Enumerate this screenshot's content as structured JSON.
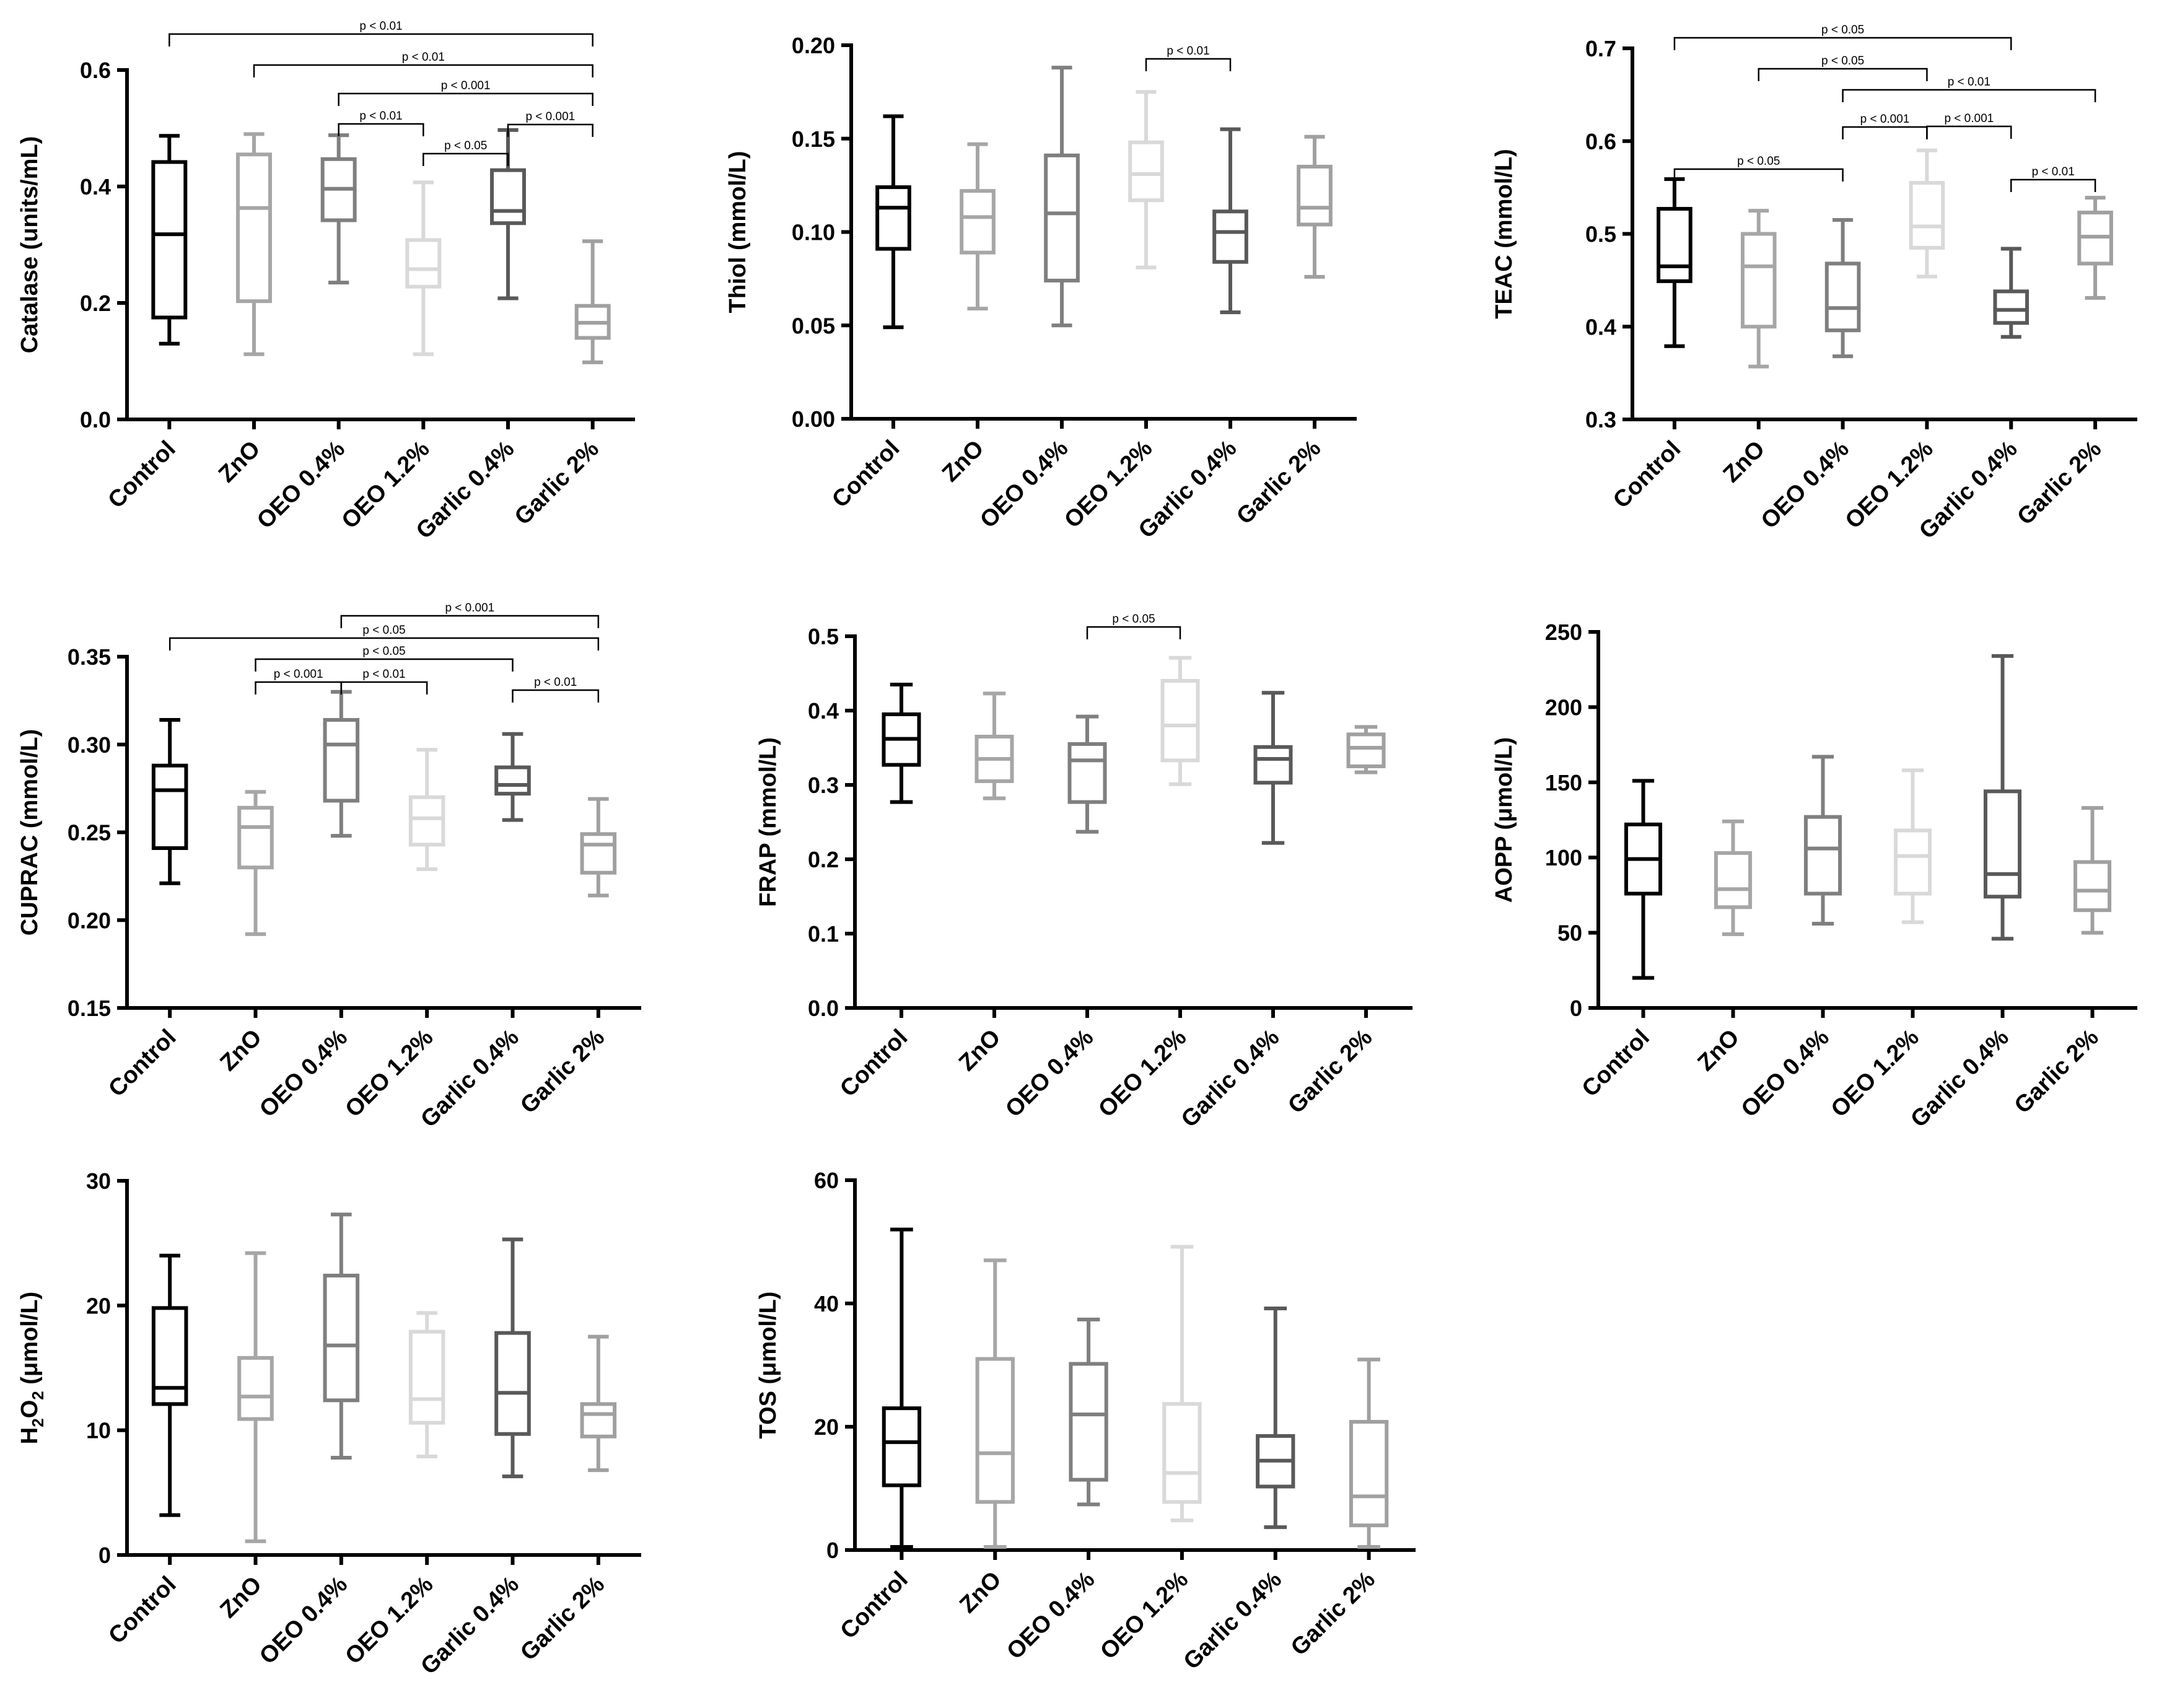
{
  "figure": {
    "group_colors": [
      "#000000",
      "#a6a6a6",
      "#7f7f7f",
      "#d9d9d9",
      "#595959",
      "#a0a0a0"
    ]
  },
  "chart_data": [
    {
      "type": "boxplot",
      "ylabel": "Catalase (units/mL)",
      "ylim": [
        0,
        0.6
      ],
      "yticks": [
        "0.0",
        "0.2",
        "0.4",
        "0.6"
      ],
      "categories": [
        "Control",
        "ZnO",
        "OEO 0.4%",
        "OEO 1.2%",
        "Garlic 0.4%",
        "Garlic 2%"
      ],
      "boxes": [
        {
          "min": 0.13,
          "q1": 0.175,
          "median": 0.318,
          "q3": 0.442,
          "max": 0.487
        },
        {
          "min": 0.112,
          "q1": 0.203,
          "median": 0.363,
          "q3": 0.455,
          "max": 0.49
        },
        {
          "min": 0.235,
          "q1": 0.342,
          "median": 0.396,
          "q3": 0.447,
          "max": 0.488
        },
        {
          "min": 0.112,
          "q1": 0.228,
          "median": 0.258,
          "q3": 0.308,
          "max": 0.407
        },
        {
          "min": 0.208,
          "q1": 0.337,
          "median": 0.358,
          "q3": 0.428,
          "max": 0.497
        },
        {
          "min": 0.098,
          "q1": 0.14,
          "median": 0.166,
          "q3": 0.195,
          "max": 0.306
        }
      ],
      "annotations": [
        {
          "from": 0,
          "to": 5,
          "text": "p < 0.01"
        },
        {
          "from": 1,
          "to": 5,
          "text": "p < 0.01"
        },
        {
          "from": 2,
          "to": 5,
          "text": "p < 0.001"
        },
        {
          "from": 2,
          "to": 3,
          "text": "p < 0.01"
        },
        {
          "from": 4,
          "to": 5,
          "text": "p < 0.001"
        },
        {
          "from": 3,
          "to": 4,
          "text": "p < 0.05"
        }
      ]
    },
    {
      "type": "boxplot",
      "ylabel": "Thiol (mmol/L)",
      "ylim": [
        0,
        0.2
      ],
      "yticks": [
        "0.00",
        "0.05",
        "0.10",
        "0.15",
        "0.20"
      ],
      "categories": [
        "Control",
        "ZnO",
        "OEO 0.4%",
        "OEO 1.2%",
        "Garlic 0.4%",
        "Garlic 2%"
      ],
      "boxes": [
        {
          "min": 0.049,
          "q1": 0.091,
          "median": 0.113,
          "q3": 0.124,
          "max": 0.162
        },
        {
          "min": 0.059,
          "q1": 0.089,
          "median": 0.108,
          "q3": 0.122,
          "max": 0.147
        },
        {
          "min": 0.05,
          "q1": 0.074,
          "median": 0.11,
          "q3": 0.141,
          "max": 0.188
        },
        {
          "min": 0.081,
          "q1": 0.117,
          "median": 0.131,
          "q3": 0.148,
          "max": 0.175
        },
        {
          "min": 0.057,
          "q1": 0.084,
          "median": 0.1,
          "q3": 0.111,
          "max": 0.155
        },
        {
          "min": 0.076,
          "q1": 0.104,
          "median": 0.113,
          "q3": 0.135,
          "max": 0.151
        }
      ],
      "annotations": [
        {
          "from": 3,
          "to": 4,
          "text": "p < 0.01"
        }
      ]
    },
    {
      "type": "boxplot",
      "ylabel": "TEAC (mmol/L)",
      "ylim": [
        0.3,
        0.7
      ],
      "yticks": [
        "0.3",
        "0.4",
        "0.5",
        "0.6",
        "0.7"
      ],
      "categories": [
        "Control",
        "ZnO",
        "OEO 0.4%",
        "OEO 1.2%",
        "Garlic 0.4%",
        "Garlic 2%"
      ],
      "boxes": [
        {
          "min": 0.379,
          "q1": 0.449,
          "median": 0.465,
          "q3": 0.527,
          "max": 0.559
        },
        {
          "min": 0.357,
          "q1": 0.4,
          "median": 0.465,
          "q3": 0.5,
          "max": 0.525
        },
        {
          "min": 0.368,
          "q1": 0.396,
          "median": 0.42,
          "q3": 0.468,
          "max": 0.515
        },
        {
          "min": 0.454,
          "q1": 0.485,
          "median": 0.508,
          "q3": 0.555,
          "max": 0.59
        },
        {
          "min": 0.389,
          "q1": 0.404,
          "median": 0.418,
          "q3": 0.438,
          "max": 0.484
        },
        {
          "min": 0.431,
          "q1": 0.468,
          "median": 0.497,
          "q3": 0.523,
          "max": 0.539
        }
      ],
      "annotations": [
        {
          "from": 0,
          "to": 4,
          "text": "p < 0.05"
        },
        {
          "from": 1,
          "to": 3,
          "text": "p < 0.05"
        },
        {
          "from": 2,
          "to": 5,
          "text": "p < 0.01"
        },
        {
          "from": 2,
          "to": 3,
          "text": "p < 0.001"
        },
        {
          "from": 3,
          "to": 4,
          "text": "p < 0.001"
        },
        {
          "from": 0,
          "to": 2,
          "text": "p < 0.05"
        },
        {
          "from": 4,
          "to": 5,
          "text": "p < 0.01"
        }
      ]
    },
    {
      "type": "boxplot",
      "ylabel": "CUPRAC (mmol/L)",
      "ylim": [
        0.15,
        0.35
      ],
      "yticks": [
        "0.15",
        "0.20",
        "0.25",
        "0.30",
        "0.35"
      ],
      "categories": [
        "Control",
        "ZnO",
        "OEO 0.4%",
        "OEO 1.2%",
        "Garlic 0.4%",
        "Garlic 2%"
      ],
      "boxes": [
        {
          "min": 0.221,
          "q1": 0.241,
          "median": 0.274,
          "q3": 0.288,
          "max": 0.314
        },
        {
          "min": 0.192,
          "q1": 0.23,
          "median": 0.253,
          "q3": 0.264,
          "max": 0.273
        },
        {
          "min": 0.248,
          "q1": 0.268,
          "median": 0.3,
          "q3": 0.314,
          "max": 0.33
        },
        {
          "min": 0.229,
          "q1": 0.243,
          "median": 0.258,
          "q3": 0.27,
          "max": 0.297
        },
        {
          "min": 0.257,
          "q1": 0.272,
          "median": 0.277,
          "q3": 0.287,
          "max": 0.306
        },
        {
          "min": 0.214,
          "q1": 0.227,
          "median": 0.243,
          "q3": 0.249,
          "max": 0.269
        }
      ],
      "annotations": [
        {
          "from": 2,
          "to": 5,
          "text": "p < 0.001"
        },
        {
          "from": 0,
          "to": 5,
          "text": "p < 0.05"
        },
        {
          "from": 1,
          "to": 4,
          "text": "p < 0.05"
        },
        {
          "from": 1,
          "to": 2,
          "text": "p < 0.001"
        },
        {
          "from": 2,
          "to": 3,
          "text": "p < 0.01"
        },
        {
          "from": 4,
          "to": 5,
          "text": "p < 0.01"
        }
      ]
    },
    {
      "type": "boxplot",
      "ylabel": "FRAP (mmol/L)",
      "ylim": [
        0,
        0.5
      ],
      "yticks": [
        "0.0",
        "0.1",
        "0.2",
        "0.3",
        "0.4",
        "0.5"
      ],
      "categories": [
        "Control",
        "ZnO",
        "OEO 0.4%",
        "OEO 1.2%",
        "Garlic 0.4%",
        "Garlic 2%"
      ],
      "boxes": [
        {
          "min": 0.277,
          "q1": 0.327,
          "median": 0.362,
          "q3": 0.395,
          "max": 0.435
        },
        {
          "min": 0.282,
          "q1": 0.305,
          "median": 0.335,
          "q3": 0.365,
          "max": 0.423
        },
        {
          "min": 0.237,
          "q1": 0.277,
          "median": 0.333,
          "q3": 0.355,
          "max": 0.392
        },
        {
          "min": 0.301,
          "q1": 0.333,
          "median": 0.38,
          "q3": 0.44,
          "max": 0.471
        },
        {
          "min": 0.222,
          "q1": 0.303,
          "median": 0.335,
          "q3": 0.351,
          "max": 0.424
        },
        {
          "min": 0.317,
          "q1": 0.325,
          "median": 0.35,
          "q3": 0.368,
          "max": 0.378
        }
      ],
      "annotations": [
        {
          "from": 2,
          "to": 3,
          "text": "p < 0.05"
        }
      ]
    },
    {
      "type": "boxplot",
      "ylabel": "AOPP (μmol/L)",
      "ylim": [
        0,
        250
      ],
      "yticks": [
        "0",
        "50",
        "100",
        "150",
        "200",
        "250"
      ],
      "categories": [
        "Control",
        "ZnO",
        "OEO 0.4%",
        "OEO 1.2%",
        "Garlic 0.4%",
        "Garlic 2%"
      ],
      "boxes": [
        {
          "min": 20,
          "q1": 76,
          "median": 99,
          "q3": 122,
          "max": 151
        },
        {
          "min": 49,
          "q1": 67,
          "median": 79,
          "q3": 103,
          "max": 124
        },
        {
          "min": 56,
          "q1": 76,
          "median": 106,
          "q3": 127,
          "max": 167
        },
        {
          "min": 57,
          "q1": 76,
          "median": 101,
          "q3": 118,
          "max": 158
        },
        {
          "min": 46,
          "q1": 74,
          "median": 89,
          "q3": 144,
          "max": 234
        },
        {
          "min": 50,
          "q1": 65,
          "median": 78,
          "q3": 97,
          "max": 133
        }
      ],
      "annotations": []
    },
    {
      "type": "boxplot",
      "ylabel": "H2O2 (μmol/L)",
      "ylabel_parts": {
        "pre": "H",
        "sub1": "2",
        "mid": "O",
        "sub2": "2",
        "post": " (μmol/L)"
      },
      "ylim": [
        0,
        30
      ],
      "yticks": [
        "0",
        "10",
        "20",
        "30"
      ],
      "categories": [
        "Control",
        "ZnO",
        "OEO 0.4%",
        "OEO 1.2%",
        "Garlic 0.4%",
        "Garlic 2%"
      ],
      "boxes": [
        {
          "min": 3.2,
          "q1": 12.1,
          "median": 13.4,
          "q3": 19.8,
          "max": 24
        },
        {
          "min": 1.1,
          "q1": 10.9,
          "median": 12.7,
          "q3": 15.8,
          "max": 24.2
        },
        {
          "min": 7.8,
          "q1": 12.4,
          "median": 16.8,
          "q3": 22.4,
          "max": 27.3
        },
        {
          "min": 7.9,
          "q1": 10.6,
          "median": 12.5,
          "q3": 17.9,
          "max": 19.4
        },
        {
          "min": 6.3,
          "q1": 9.7,
          "median": 13,
          "q3": 17.8,
          "max": 25.3
        },
        {
          "min": 6.8,
          "q1": 9.5,
          "median": 11.3,
          "q3": 12.1,
          "max": 17.5
        }
      ],
      "annotations": []
    },
    {
      "type": "boxplot",
      "ylabel": "TOS (μmol/L)",
      "ylim": [
        0,
        60
      ],
      "yticks": [
        "0",
        "20",
        "40",
        "60"
      ],
      "categories": [
        "Control",
        "ZnO",
        "OEO 0.4%",
        "OEO 1.2%",
        "Garlic 0.4%",
        "Garlic 2%"
      ],
      "boxes": [
        {
          "min": 0.5,
          "q1": 10.5,
          "median": 17.5,
          "q3": 23,
          "max": 52
        },
        {
          "min": 0.5,
          "q1": 7.8,
          "median": 15.7,
          "q3": 31,
          "max": 47
        },
        {
          "min": 7.4,
          "q1": 11.4,
          "median": 22,
          "q3": 30.2,
          "max": 37.4
        },
        {
          "min": 4.8,
          "q1": 7.8,
          "median": 12.5,
          "q3": 23.7,
          "max": 49.2
        },
        {
          "min": 3.7,
          "q1": 10.3,
          "median": 14.5,
          "q3": 18.5,
          "max": 39.2
        },
        {
          "min": 0.5,
          "q1": 4,
          "median": 8.7,
          "q3": 20.8,
          "max": 30.9
        }
      ],
      "annotations": []
    }
  ]
}
